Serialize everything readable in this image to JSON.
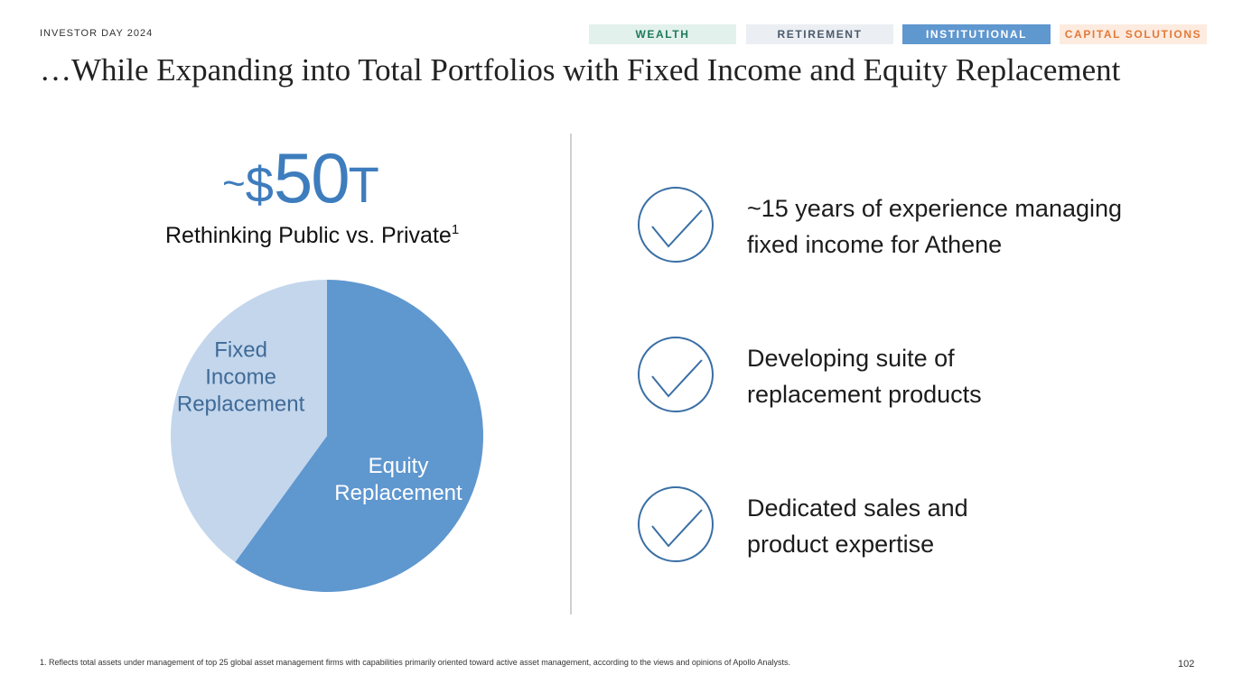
{
  "header": {
    "event_label": "INVESTOR DAY 2024",
    "segments": [
      {
        "label": "WEALTH",
        "bg": "#e3f1ed",
        "fg": "#1f7a5c",
        "active": false
      },
      {
        "label": "RETIREMENT",
        "bg": "#ebeef2",
        "fg": "#4b5a6c",
        "active": false
      },
      {
        "label": "INSTITUTIONAL",
        "bg": "#5f97cf",
        "fg": "#ffffff",
        "active": true
      },
      {
        "label": "CAPITAL SOLUTIONS",
        "bg": "#fdebe0",
        "fg": "#e27a3a",
        "active": false
      }
    ]
  },
  "title": "…While Expanding into Total Portfolios with Fixed Income and Equity Replacement",
  "stat": {
    "approx": "~",
    "currency": "$",
    "value": "50",
    "unit": "T",
    "caption": "Rethinking Public vs. Private",
    "footnote_ref": "1"
  },
  "chart_data": {
    "type": "pie",
    "title": "",
    "slices": [
      {
        "label_lines": [
          "Equity",
          "Replacement"
        ],
        "value": 60,
        "color": "#5f97cf",
        "label_color": "#ffffff"
      },
      {
        "label_lines": [
          "Fixed",
          "Income",
          "Replacement"
        ],
        "value": 40,
        "color": "#c3d6ec",
        "label_color": "#3f6a97"
      }
    ]
  },
  "checklist": [
    {
      "lines": [
        "~15 years of experience managing",
        "fixed income for Athene"
      ],
      "icon": "checkmark-circle-icon"
    },
    {
      "lines": [
        "Developing suite of",
        "replacement products"
      ],
      "icon": "checkmark-circle-icon"
    },
    {
      "lines": [
        "Dedicated sales and",
        "product expertise"
      ],
      "icon": "checkmark-circle-icon"
    }
  ],
  "footnote": "1. Reflects total assets under management of top 25 global asset management firms with capabilities primarily oriented toward active asset management, according to the views and opinions of Apollo Analysts.",
  "page_number": "102",
  "colors": {
    "accent_blue": "#3e7dbd",
    "checkmark_stroke": "#3a6fa5",
    "divider": "#d0d0d0"
  }
}
